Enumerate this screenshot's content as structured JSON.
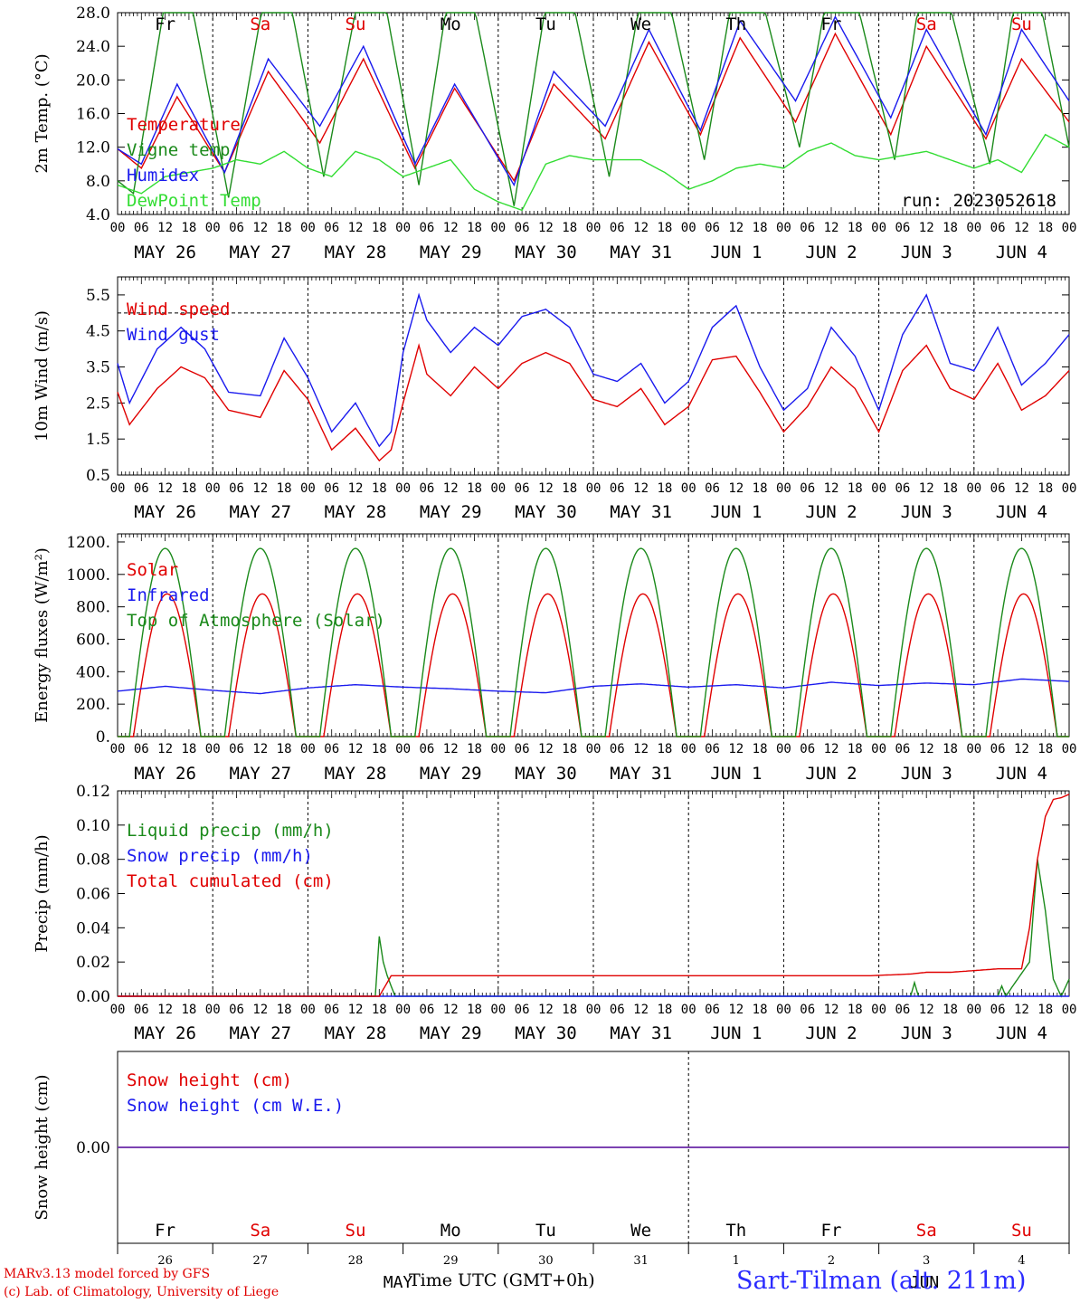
{
  "run_label": "run: 2023052618",
  "x_axis_title": "Time UTC (GMT+0h)",
  "credits": [
    "MARv3.13 model forced by GFS",
    "(c) Lab. of Climatology, University of Liege"
  ],
  "station": "Sart-Tilman (alt. 211m)",
  "colors": {
    "red": "#e00000",
    "green_dark": "#1b8a1b",
    "green_light": "#33dd33",
    "blue": "#1a1aee",
    "purple": "#7a3fb0"
  },
  "days": [
    {
      "label": "Fr",
      "weekend": false,
      "date": "MAY 26",
      "num": "26"
    },
    {
      "label": "Sa",
      "weekend": true,
      "date": "MAY 27",
      "num": "27"
    },
    {
      "label": "Su",
      "weekend": true,
      "date": "MAY 28",
      "num": "28"
    },
    {
      "label": "Mo",
      "weekend": false,
      "date": "MAY 29",
      "num": "29"
    },
    {
      "label": "Tu",
      "weekend": false,
      "date": "MAY 30",
      "num": "30"
    },
    {
      "label": "We",
      "weekend": false,
      "date": "MAY 31",
      "num": "31"
    },
    {
      "label": "Th",
      "weekend": false,
      "date": "JUN  1",
      "num": "1"
    },
    {
      "label": "Fr",
      "weekend": false,
      "date": "JUN  2",
      "num": "2"
    },
    {
      "label": "Sa",
      "weekend": true,
      "date": "JUN  3",
      "num": "3"
    },
    {
      "label": "Su",
      "weekend": true,
      "date": "JUN  4",
      "num": "4"
    }
  ],
  "hour_ticks": [
    "00",
    "06",
    "12",
    "18"
  ],
  "month_labels": [
    "MAY",
    "JUN"
  ],
  "chart_data": [
    {
      "type": "line",
      "ylabel": "2m Temp. (°C)",
      "ylim": [
        4,
        28
      ],
      "yticks": [
        "4.0",
        "8.0",
        "12.0",
        "16.0",
        "20.0",
        "24.0",
        "28.0"
      ],
      "x_unit": "hours since MAY 26 00 UTC",
      "series": [
        {
          "name": "Temperature",
          "color": "red",
          "x": [
            0,
            6,
            15,
            27,
            38,
            51,
            62,
            75,
            85,
            100,
            110,
            123,
            134,
            147,
            157,
            171,
            181,
            195,
            204,
            219,
            228,
            240
          ],
          "y": [
            11.8,
            9.5,
            18.0,
            9.0,
            21.0,
            12.5,
            22.5,
            9.5,
            19.0,
            8.0,
            19.5,
            13.0,
            24.5,
            13.5,
            25.0,
            15.0,
            25.5,
            13.5,
            24.0,
            13.0,
            22.5,
            15.0
          ]
        },
        {
          "name": "Vigne temp",
          "color": "green_dark",
          "x": [
            0,
            4,
            15,
            28,
            40,
            52,
            64,
            76,
            86,
            100,
            111,
            124,
            135,
            148,
            158,
            172,
            182,
            196,
            205,
            220,
            229,
            240
          ],
          "y": [
            8.0,
            6.5,
            38,
            6.0,
            38,
            8.5,
            38,
            7.5,
            38,
            5.0,
            38,
            8.5,
            38,
            10.5,
            38,
            12.0,
            38,
            10.5,
            38,
            10.0,
            38,
            12.0
          ]
        },
        {
          "name": "Humidex",
          "color": "blue",
          "x": [
            0,
            6,
            15,
            27,
            38,
            51,
            62,
            75,
            85,
            100,
            110,
            123,
            134,
            147,
            157,
            171,
            181,
            195,
            204,
            219,
            228,
            240
          ],
          "y": [
            11.8,
            10.0,
            19.5,
            9.0,
            22.5,
            14.5,
            24.0,
            10.0,
            19.5,
            7.5,
            21.0,
            14.5,
            26.0,
            14.0,
            27.0,
            17.5,
            27.5,
            15.5,
            26.0,
            13.5,
            26.0,
            17.5
          ]
        },
        {
          "name": "DewPoint Temp",
          "color": "green_light",
          "x": [
            0,
            6,
            12,
            18,
            24,
            30,
            36,
            42,
            48,
            54,
            60,
            66,
            72,
            78,
            84,
            90,
            96,
            102,
            108,
            114,
            120,
            126,
            132,
            138,
            144,
            150,
            156,
            162,
            168,
            174,
            180,
            186,
            192,
            198,
            204,
            210,
            216,
            222,
            228,
            234,
            240
          ],
          "y": [
            7.5,
            6.5,
            8.5,
            9.0,
            9.5,
            10.5,
            10.0,
            11.5,
            9.5,
            8.5,
            11.5,
            10.5,
            8.5,
            9.5,
            10.5,
            7.0,
            5.5,
            4.5,
            10.0,
            11.0,
            10.5,
            10.5,
            10.5,
            9.0,
            7.0,
            8.0,
            9.5,
            10.0,
            9.5,
            11.5,
            12.5,
            11.0,
            10.5,
            11.0,
            11.5,
            10.5,
            9.5,
            10.5,
            9.0,
            13.5,
            12.0
          ]
        }
      ]
    },
    {
      "type": "line",
      "ylabel": "10m Wind (m/s)",
      "ylim": [
        0.5,
        6.0
      ],
      "yticks": [
        "0.5",
        "1.5",
        "2.5",
        "3.5",
        "4.5",
        "5.5"
      ],
      "reference_line": 5.0,
      "series": [
        {
          "name": "Wind speed",
          "color": "red",
          "x": [
            0,
            3,
            10,
            16,
            22,
            28,
            36,
            42,
            48,
            54,
            60,
            66,
            69,
            72,
            76,
            78,
            84,
            90,
            96,
            102,
            108,
            114,
            120,
            126,
            132,
            138,
            144,
            150,
            156,
            162,
            168,
            174,
            180,
            186,
            192,
            198,
            204,
            210,
            216,
            222,
            228,
            234,
            240
          ],
          "y": [
            2.8,
            1.9,
            2.9,
            3.5,
            3.2,
            2.3,
            2.1,
            3.4,
            2.6,
            1.2,
            1.8,
            0.9,
            1.2,
            2.5,
            4.1,
            3.3,
            2.7,
            3.5,
            2.9,
            3.6,
            3.9,
            3.6,
            2.6,
            2.4,
            2.9,
            1.9,
            2.4,
            3.7,
            3.8,
            2.8,
            1.7,
            2.4,
            3.5,
            2.9,
            1.7,
            3.4,
            4.1,
            2.9,
            2.6,
            3.6,
            2.3,
            2.7,
            3.4
          ]
        },
        {
          "name": "Wind gust",
          "color": "blue",
          "x": [
            0,
            3,
            10,
            16,
            22,
            28,
            36,
            42,
            48,
            54,
            60,
            66,
            69,
            72,
            76,
            78,
            84,
            90,
            96,
            102,
            108,
            114,
            120,
            126,
            132,
            138,
            144,
            150,
            156,
            162,
            168,
            174,
            180,
            186,
            192,
            198,
            204,
            210,
            216,
            222,
            228,
            234,
            240
          ],
          "y": [
            3.6,
            2.5,
            4.0,
            4.6,
            4.0,
            2.8,
            2.7,
            4.3,
            3.2,
            1.7,
            2.5,
            1.3,
            1.7,
            3.9,
            5.5,
            4.8,
            3.9,
            4.6,
            4.1,
            4.9,
            5.1,
            4.6,
            3.3,
            3.1,
            3.6,
            2.5,
            3.1,
            4.6,
            5.2,
            3.5,
            2.3,
            2.9,
            4.6,
            3.8,
            2.3,
            4.4,
            5.5,
            3.6,
            3.4,
            4.6,
            3.0,
            3.6,
            4.4
          ]
        }
      ]
    },
    {
      "type": "line",
      "ylabel": "Energy fluxes (W/m²)",
      "ylim": [
        0,
        1250
      ],
      "yticks": [
        "0.",
        "200.",
        "400.",
        "600.",
        "800.",
        "1000.",
        "1200."
      ],
      "series": [
        {
          "name": "Solar",
          "color": "red",
          "peak": 880,
          "half_width": 8.5,
          "peak_hour": 12.5
        },
        {
          "name": "Infrared",
          "color": "blue",
          "x": [
            0,
            12,
            24,
            36,
            48,
            60,
            72,
            84,
            96,
            108,
            120,
            132,
            144,
            156,
            168,
            180,
            192,
            204,
            216,
            228,
            240
          ],
          "y": [
            280,
            310,
            285,
            265,
            300,
            320,
            305,
            295,
            280,
            270,
            310,
            325,
            305,
            320,
            300,
            335,
            315,
            330,
            320,
            355,
            340
          ]
        },
        {
          "name": "Top of Atmosphere (Solar)",
          "color": "green_dark",
          "peak": 1160,
          "half_width": 9,
          "peak_hour": 12
        }
      ]
    },
    {
      "type": "line",
      "ylabel": "Precip (mm/h)",
      "ylim": [
        0,
        0.12
      ],
      "yticks": [
        "0.00",
        "0.02",
        "0.04",
        "0.06",
        "0.08",
        "0.10",
        "0.12"
      ],
      "series": [
        {
          "name": "Liquid precip (mm/h)",
          "color": "green_dark",
          "x": [
            0,
            65,
            66,
            67,
            68,
            70,
            72,
            200,
            201,
            202,
            222,
            223,
            224,
            230,
            232,
            234,
            236,
            238,
            240
          ],
          "y": [
            0,
            0,
            0.035,
            0.02,
            0.012,
            0,
            0,
            0,
            0.008,
            0,
            0,
            0.006,
            0,
            0.02,
            0.08,
            0.05,
            0.01,
            0,
            0.01
          ]
        },
        {
          "name": "Snow precip (mm/h)",
          "color": "blue",
          "x": [
            0,
            240
          ],
          "y": [
            0,
            0
          ]
        },
        {
          "name": "Total cumulated (cm)",
          "color": "red",
          "x": [
            0,
            66,
            68,
            69,
            72,
            190,
            200,
            204,
            210,
            216,
            222,
            228,
            230,
            232,
            234,
            236,
            238,
            240
          ],
          "y": [
            0,
            0,
            0.008,
            0.012,
            0.012,
            0.012,
            0.013,
            0.014,
            0.014,
            0.015,
            0.016,
            0.016,
            0.04,
            0.08,
            0.105,
            0.115,
            0.116,
            0.118
          ]
        }
      ]
    },
    {
      "type": "line",
      "ylabel": "Snow height (cm)",
      "ylim": [
        -0.1,
        0.1
      ],
      "yticks": [
        "0.00"
      ],
      "series": [
        {
          "name": "Snow height (cm)",
          "color": "red",
          "x": [
            0,
            240
          ],
          "y": [
            0,
            0
          ]
        },
        {
          "name": "Snow height (cm W.E.)",
          "color": "blue",
          "x": [
            0,
            240
          ],
          "y": [
            0,
            0
          ]
        }
      ]
    }
  ]
}
